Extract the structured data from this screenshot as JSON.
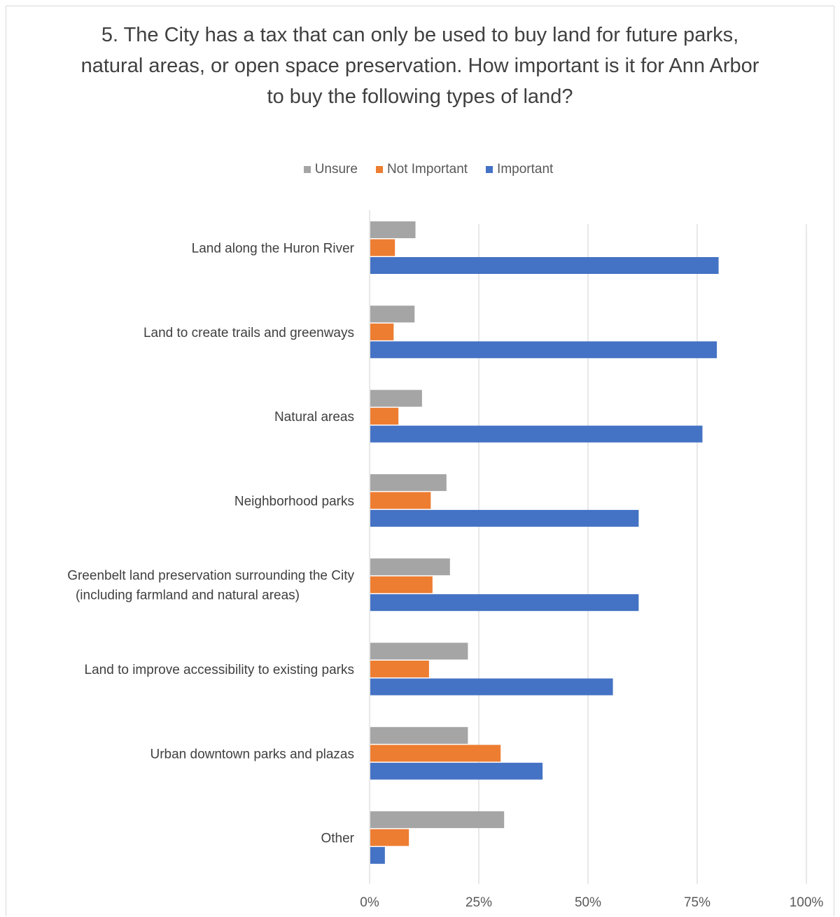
{
  "chart_data": {
    "type": "bar",
    "orientation": "horizontal",
    "title": "5. The City has a tax that can only be used to buy land for future parks, natural areas, or open space preservation. How important is it for Ann Arbor to buy the following types of land?",
    "categories": [
      [
        "Land along the Huron River"
      ],
      [
        "Land to create trails and greenways"
      ],
      [
        "Natural areas"
      ],
      [
        "Neighborhood parks"
      ],
      [
        "Greenbelt land preservation surrounding the City",
        "(including farmland and natural areas)"
      ],
      [
        "Land to improve accessibility to existing parks"
      ],
      [
        "Urban downtown parks and plazas"
      ],
      [
        "Other"
      ]
    ],
    "series": [
      {
        "name": "Unsure",
        "color": "#a5a5a5",
        "values": [
          10.5,
          10.3,
          12,
          17.6,
          18.4,
          22.5,
          22.5,
          30.8
        ]
      },
      {
        "name": "Not Important",
        "color": "#ed7d31",
        "values": [
          5.8,
          5.5,
          6.6,
          14,
          14.4,
          13.6,
          30,
          9
        ]
      },
      {
        "name": "Important",
        "color": "#4472c4",
        "values": [
          79.9,
          79.5,
          76.2,
          61.6,
          61.6,
          55.7,
          39.6,
          3.5
        ]
      }
    ],
    "legend_order": [
      "Unsure",
      "Not Important",
      "Important"
    ],
    "legend_position": "top",
    "xlim": [
      0,
      100
    ],
    "xticks": [
      "0%",
      "25%",
      "50%",
      "75%",
      "100%"
    ],
    "xtick_values": [
      0,
      25,
      50,
      75,
      100
    ],
    "grid": true
  }
}
